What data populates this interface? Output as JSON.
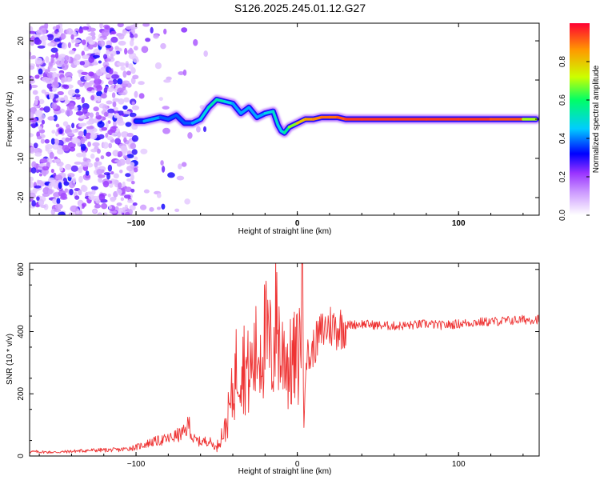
{
  "title": "S126.2025.245.01.12.G27",
  "chart_data": [
    {
      "type": "heatmap",
      "title": "S126.2025.245.01.12.G27",
      "xlabel": "Height of straight line (km)",
      "ylabel": "Frequency (Hz)",
      "xlim": [
        -166,
        150
      ],
      "ylim": [
        -24.5,
        24.5
      ],
      "xticks": [
        -100,
        0,
        100
      ],
      "yticks": [
        -20,
        -10,
        0,
        10,
        20
      ],
      "colorbar": {
        "label": "Normalized spectral amplitude",
        "range": [
          0,
          1
        ],
        "ticks": [
          "0.0",
          "0.2",
          "0.4",
          "0.6",
          "0.8"
        ],
        "colors": [
          "#ffffff",
          "#cc99ff",
          "#9933ff",
          "#0000ff",
          "#00ccff",
          "#00ff66",
          "#ccff00",
          "#ff9900",
          "#ff0033"
        ]
      },
      "ridge": {
        "x": [
          -100,
          -95,
          -90,
          -85,
          -80,
          -75,
          -70,
          -65,
          -60,
          -55,
          -50,
          -45,
          -40,
          -35,
          -30,
          -25,
          -20,
          -15,
          -12,
          -10,
          -8,
          -5,
          0,
          5,
          10,
          15,
          20,
          25,
          30,
          40,
          60,
          80,
          100,
          120,
          140,
          148
        ],
        "freq": [
          -0.5,
          -0.5,
          0,
          0.5,
          0,
          1,
          -1,
          -1,
          0,
          3,
          5,
          4.5,
          4,
          1.5,
          3,
          0.5,
          1.5,
          2,
          -1.5,
          -3,
          -3.5,
          -2,
          -1,
          0,
          0,
          0.5,
          0.5,
          0.5,
          0,
          0,
          0,
          0,
          0,
          0,
          0,
          0
        ],
        "amplitude": [
          0.3,
          0.4,
          0.45,
          0.4,
          0.35,
          0.4,
          0.35,
          0.4,
          0.45,
          0.5,
          0.55,
          0.5,
          0.45,
          0.4,
          0.45,
          0.4,
          0.45,
          0.5,
          0.5,
          0.45,
          0.5,
          0.6,
          0.75,
          0.85,
          0.85,
          0.9,
          0.9,
          0.9,
          0.95,
          0.95,
          0.95,
          0.95,
          0.95,
          0.95,
          0.9,
          0.5
        ]
      }
    },
    {
      "type": "line",
      "title": "",
      "xlabel": "Height of straight line (km)",
      "ylabel": "SNR (10 * v/v)",
      "xlim": [
        -166,
        150
      ],
      "ylim": [
        0,
        620
      ],
      "xticks": [
        -100,
        0,
        100
      ],
      "yticks": [
        0,
        200,
        400,
        600
      ],
      "color": "#ee3333",
      "series": [
        {
          "name": "SNR",
          "x": [
            -166,
            -150,
            -130,
            -110,
            -100,
            -90,
            -80,
            -75,
            -70,
            -67,
            -65,
            -60,
            -55,
            -50,
            -48,
            -45,
            -40,
            -38,
            -35,
            -30,
            -25,
            -20,
            -15,
            -13,
            -10,
            -8,
            -5,
            -3,
            0,
            2,
            3,
            4,
            5,
            6,
            8,
            10,
            15,
            20,
            25,
            30,
            40,
            50,
            60,
            70,
            80,
            90,
            100,
            110,
            120,
            130,
            140,
            150
          ],
          "y": [
            14,
            12,
            18,
            20,
            28,
            45,
            55,
            65,
            75,
            105,
            55,
            45,
            50,
            25,
            60,
            80,
            200,
            280,
            320,
            260,
            330,
            380,
            320,
            470,
            300,
            360,
            280,
            300,
            310,
            360,
            618,
            75,
            300,
            330,
            310,
            350,
            400,
            420,
            410,
            420,
            425,
            420,
            418,
            420,
            425,
            420,
            425,
            430,
            432,
            435,
            438,
            440
          ]
        }
      ]
    }
  ]
}
